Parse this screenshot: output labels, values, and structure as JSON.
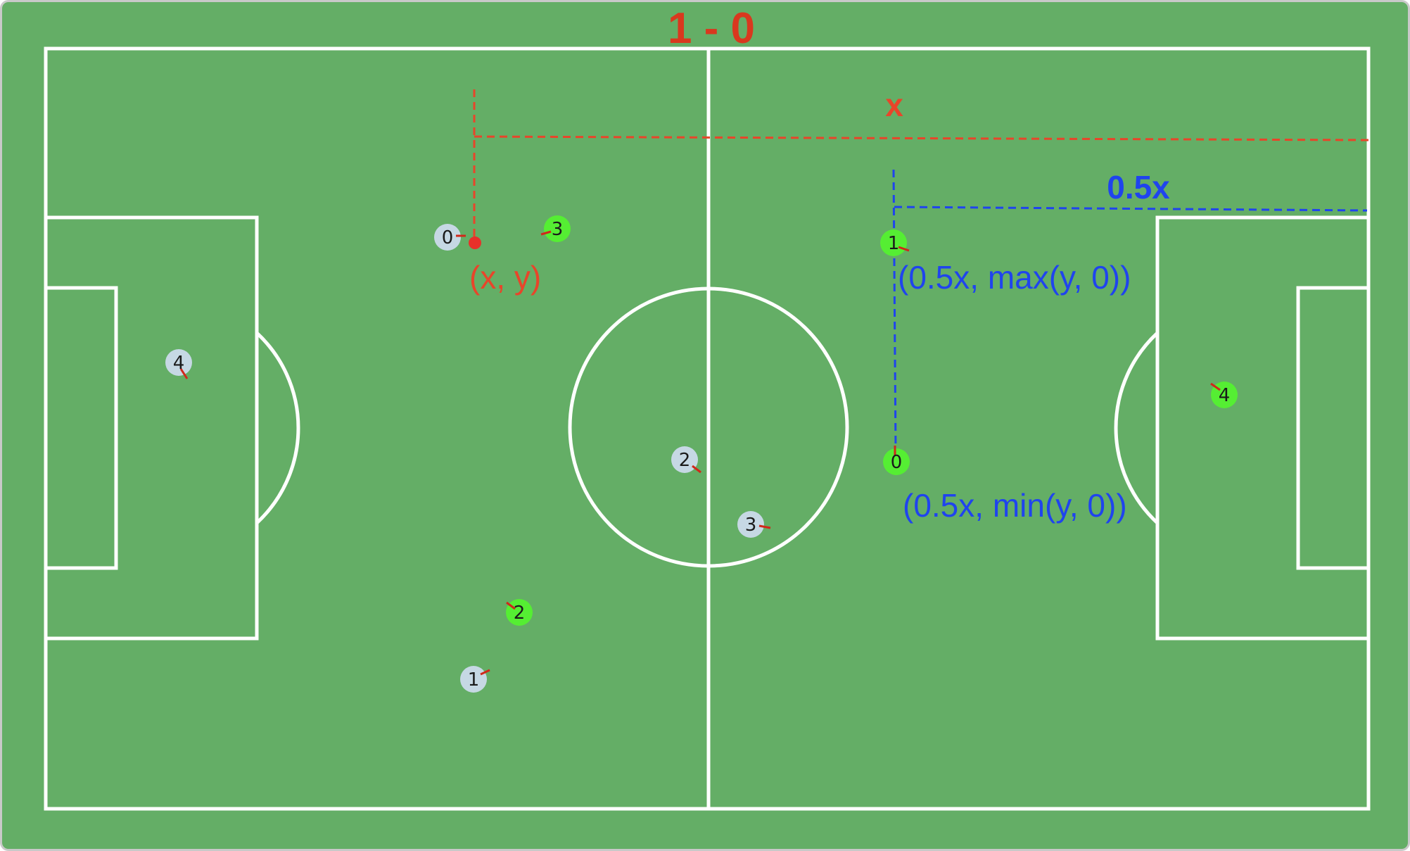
{
  "score": {
    "text": "1 - 0",
    "color": "#d9381e"
  },
  "colors": {
    "pitch": "#64ae66",
    "lines": "#ffffff",
    "team_light": "#c6d8e4",
    "team_green": "#55ee33",
    "heading": "#cc2a14",
    "red_annotation": "#e8452a",
    "blue_annotation": "#1f44ee"
  },
  "annotations": {
    "red_distance_label": "x",
    "red_point_label": "(x, y)",
    "blue_distance_label": "0.5x",
    "blue_upper_label": "(0.5x, max(y, 0))",
    "blue_lower_label": "(0.5x, min(y, 0))"
  },
  "players": {
    "light_team": [
      "0",
      "4",
      "2",
      "3",
      "1"
    ],
    "green_team": [
      "3",
      "1",
      "4",
      "0",
      "2"
    ]
  }
}
